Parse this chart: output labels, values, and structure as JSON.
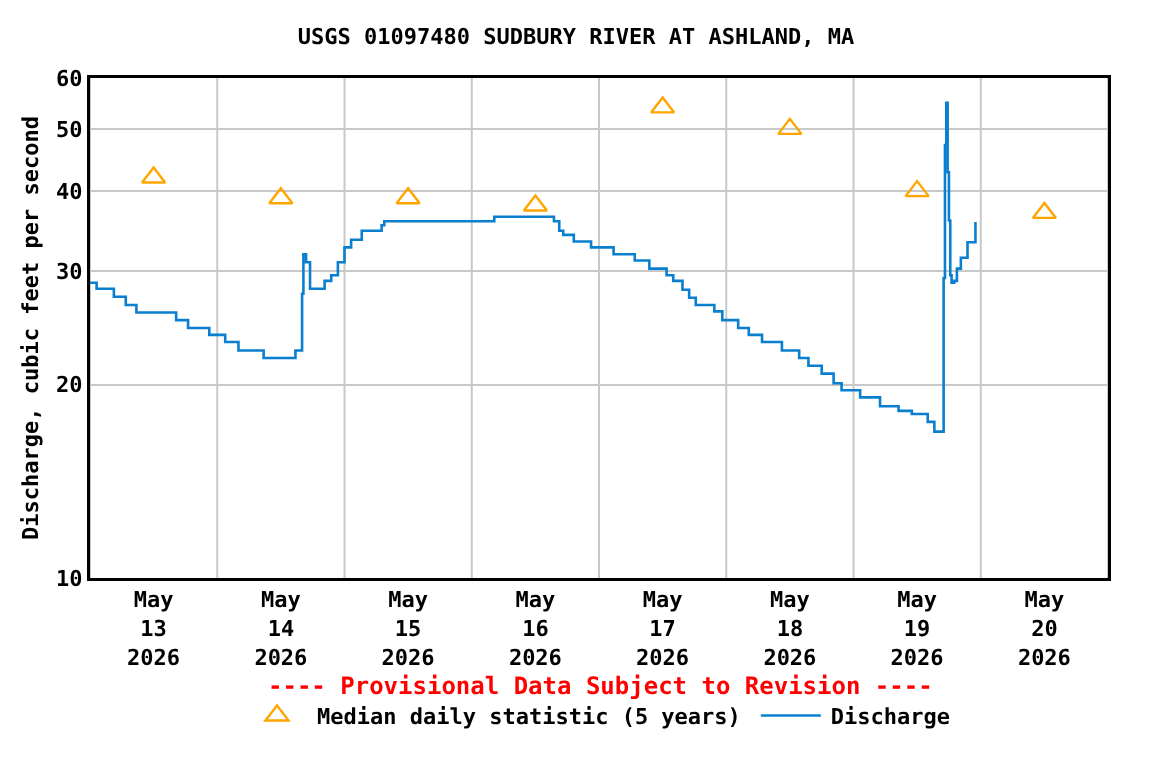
{
  "chart_data": {
    "type": "step",
    "title": "USGS 01097480 SUDBURY RIVER AT ASHLAND, MA",
    "ylabel": "Discharge, cubic feet per second",
    "annotations": [
      "---- Provisional Data Subject to Revision ----"
    ],
    "log": "y",
    "grid": true,
    "legend": "bottom",
    "xlim": [
      "2026-05-13T00:00",
      "2026-05-21T00:00"
    ],
    "xticks": [
      {
        "value": "2026-05-13T00:00",
        "label": null
      },
      {
        "value": "2026-05-13T12:00",
        "label": "May\n13\n2026"
      },
      {
        "value": "2026-05-14T00:00",
        "label": null
      },
      {
        "value": "2026-05-14T12:00",
        "label": "May\n14\n2026"
      },
      {
        "value": "2026-05-15T00:00",
        "label": null
      },
      {
        "value": "2026-05-15T12:00",
        "label": "May\n15\n2026"
      },
      {
        "value": "2026-05-16T00:00",
        "label": null
      },
      {
        "value": "2026-05-16T12:00",
        "label": "May\n16\n2026"
      },
      {
        "value": "2026-05-17T00:00",
        "label": null
      },
      {
        "value": "2026-05-17T12:00",
        "label": "May\n17\n2026"
      },
      {
        "value": "2026-05-18T00:00",
        "label": null
      },
      {
        "value": "2026-05-18T12:00",
        "label": "May\n18\n2026"
      },
      {
        "value": "2026-05-19T00:00",
        "label": null
      },
      {
        "value": "2026-05-19T12:00",
        "label": "May\n19\n2026"
      },
      {
        "value": "2026-05-20T00:00",
        "label": null
      },
      {
        "value": "2026-05-20T12:00",
        "label": "May\n20\n2026"
      },
      {
        "value": "2026-05-21T00:00",
        "label": null
      }
    ],
    "ylim": [
      10,
      60
    ],
    "yticks": [
      10,
      20,
      30,
      40,
      50,
      60
    ],
    "series": [
      {
        "name": "Median daily statistic (5 years)",
        "type": "scatter",
        "marker": "triangle",
        "color": "#ffa500",
        "x": [
          "2026-05-13T12:00",
          "2026-05-14T12:00",
          "2026-05-15T12:00",
          "2026-05-16T12:00",
          "2026-05-17T12:00",
          "2026-05-18T12:00",
          "2026-05-19T12:00",
          "2026-05-20T12:00"
        ],
        "values": [
          42,
          39,
          39,
          38,
          54,
          50,
          40,
          37
        ]
      },
      {
        "name": "Discharge",
        "color": "#0a7fd0",
        "x": [
          "2026-05-13T00:00",
          "2026-05-13T01:15",
          "2026-05-13T04:30",
          "2026-05-13T06:45",
          "2026-05-13T08:45",
          "2026-05-13T16:15",
          "2026-05-13T18:30",
          "2026-05-13T22:30",
          "2026-05-14T01:30",
          "2026-05-14T04:00",
          "2026-05-14T08:45",
          "2026-05-14T14:45",
          "2026-05-14T16:00",
          "2026-05-14T16:15",
          "2026-05-14T16:45",
          "2026-05-14T17:30",
          "2026-05-14T20:15",
          "2026-05-14T21:30",
          "2026-05-14T22:45",
          "2026-05-15T00:00",
          "2026-05-15T01:15",
          "2026-05-15T03:15",
          "2026-05-15T07:00",
          "2026-05-15T07:30",
          "2026-05-16T04:15",
          "2026-05-16T15:30",
          "2026-05-16T16:30",
          "2026-05-16T17:15",
          "2026-05-16T19:15",
          "2026-05-16T22:30",
          "2026-05-17T02:45",
          "2026-05-17T06:45",
          "2026-05-17T09:30",
          "2026-05-17T12:45",
          "2026-05-17T14:00",
          "2026-05-17T15:45",
          "2026-05-17T17:00",
          "2026-05-17T18:15",
          "2026-05-17T21:45",
          "2026-05-17T23:15",
          "2026-05-18T02:15",
          "2026-05-18T04:15",
          "2026-05-18T06:45",
          "2026-05-18T10:30",
          "2026-05-18T13:45",
          "2026-05-18T15:30",
          "2026-05-18T18:00",
          "2026-05-18T20:15",
          "2026-05-18T21:45",
          "2026-05-19T01:15",
          "2026-05-19T05:00",
          "2026-05-19T08:30",
          "2026-05-19T11:00",
          "2026-05-19T14:00",
          "2026-05-19T15:15",
          "2026-05-19T17:00",
          "2026-05-19T17:15",
          "2026-05-19T17:30",
          "2026-05-19T17:45",
          "2026-05-19T18:00",
          "2026-05-19T18:15",
          "2026-05-19T18:30",
          "2026-05-19T19:00",
          "2026-05-19T19:30",
          "2026-05-19T20:15",
          "2026-05-19T21:30",
          "2026-05-19T23:00"
        ],
        "values": [
          28.8,
          28.2,
          27.4,
          26.6,
          25.9,
          25.2,
          24.5,
          23.9,
          23.3,
          22.6,
          22.0,
          22.6,
          27.7,
          31.9,
          31.0,
          28.2,
          29.0,
          29.6,
          31.0,
          32.7,
          33.6,
          34.7,
          35.4,
          35.9,
          36.5,
          35.9,
          34.7,
          34.2,
          33.4,
          32.7,
          31.9,
          31.2,
          30.3,
          29.6,
          29.0,
          28.1,
          27.3,
          26.6,
          26.0,
          25.2,
          24.5,
          23.9,
          23.3,
          22.6,
          22.0,
          21.4,
          20.8,
          20.1,
          19.6,
          19.1,
          18.5,
          18.2,
          18.0,
          17.5,
          16.9,
          29.3,
          47.2,
          54.9,
          42.8,
          36.0,
          29.6,
          28.8,
          29.0,
          30.3,
          31.5,
          33.3,
          35.8
        ]
      }
    ]
  }
}
